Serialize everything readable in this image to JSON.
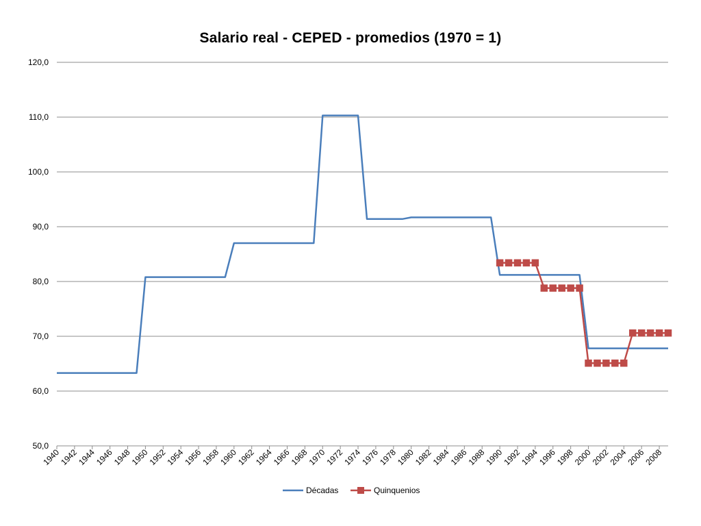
{
  "chart_data": {
    "type": "line",
    "title": "Salario real  - CEPED - promedios  (1970 = 1)",
    "xlabel": "",
    "ylabel": "",
    "ylim": [
      50,
      120
    ],
    "y_ticks": [
      "50,0",
      "60,0",
      "70,0",
      "80,0",
      "90,0",
      "100,0",
      "110,0",
      "120,0"
    ],
    "y_tick_values": [
      50,
      60,
      70,
      80,
      90,
      100,
      110,
      120
    ],
    "x_range": [
      1940,
      2009
    ],
    "x_ticks": [
      "1940",
      "1942",
      "1944",
      "1946",
      "1948",
      "1950",
      "1952",
      "1954",
      "1956",
      "1958",
      "1960",
      "1962",
      "1964",
      "1966",
      "1968",
      "1970",
      "1972",
      "1974",
      "1976",
      "1978",
      "1980",
      "1982",
      "1984",
      "1986",
      "1988",
      "1990",
      "1992",
      "1994",
      "1996",
      "1998",
      "2000",
      "2002",
      "2004",
      "2006",
      "2008"
    ],
    "grid": "horizontal",
    "legend_position": "bottom",
    "series": [
      {
        "name": "Décadas",
        "color": "#4a7ebb",
        "marker": "none",
        "points": [
          [
            1940,
            63.3
          ],
          [
            1949,
            63.3
          ],
          [
            1950,
            80.8
          ],
          [
            1959,
            80.8
          ],
          [
            1960,
            87.0
          ],
          [
            1969,
            87.0
          ],
          [
            1970,
            110.3
          ],
          [
            1974,
            110.3
          ],
          [
            1975,
            91.4
          ],
          [
            1979,
            91.4
          ],
          [
            1980,
            91.7
          ],
          [
            1989,
            91.7
          ],
          [
            1990,
            81.2
          ],
          [
            1999,
            81.2
          ],
          [
            2000,
            67.8
          ],
          [
            2009,
            67.8
          ]
        ]
      },
      {
        "name": "Quinquenios",
        "color": "#be4b48",
        "marker": "square",
        "points": [
          [
            1990,
            83.4
          ],
          [
            1991,
            83.4
          ],
          [
            1992,
            83.4
          ],
          [
            1993,
            83.4
          ],
          [
            1994,
            83.4
          ],
          [
            1995,
            78.8
          ],
          [
            1996,
            78.8
          ],
          [
            1997,
            78.8
          ],
          [
            1998,
            78.8
          ],
          [
            1999,
            78.8
          ],
          [
            2000,
            65.1
          ],
          [
            2001,
            65.1
          ],
          [
            2002,
            65.1
          ],
          [
            2003,
            65.1
          ],
          [
            2004,
            65.1
          ],
          [
            2005,
            70.6
          ],
          [
            2006,
            70.6
          ],
          [
            2007,
            70.6
          ],
          [
            2008,
            70.6
          ],
          [
            2009,
            70.6
          ]
        ]
      }
    ]
  }
}
